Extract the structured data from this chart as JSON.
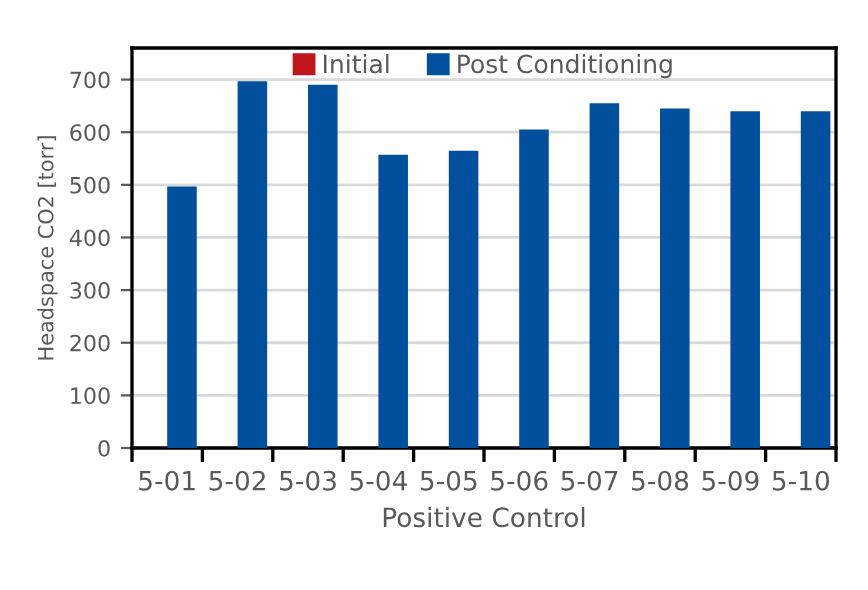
{
  "chart_data": {
    "type": "bar",
    "xlabel": "Positive Control",
    "ylabel": "Headspace CO2 [torr]",
    "categories": [
      "5-01",
      "5-02",
      "5-03",
      "5-04",
      "5-05",
      "5-06",
      "5-07",
      "5-08",
      "5-09",
      "5-10"
    ],
    "series": [
      {
        "name": "Initial",
        "color": "#c0161c",
        "values": [
          null,
          null,
          null,
          null,
          null,
          null,
          null,
          null,
          null,
          null
        ]
      },
      {
        "name": "Post Conditioning",
        "color": "#00509e",
        "values": [
          497,
          697,
          690,
          557,
          565,
          605,
          655,
          645,
          640,
          640
        ]
      }
    ],
    "ylim": [
      0,
      760
    ],
    "yticks": [
      0,
      100,
      200,
      300,
      400,
      500,
      600,
      700
    ],
    "grid": "y",
    "legend": "top"
  }
}
